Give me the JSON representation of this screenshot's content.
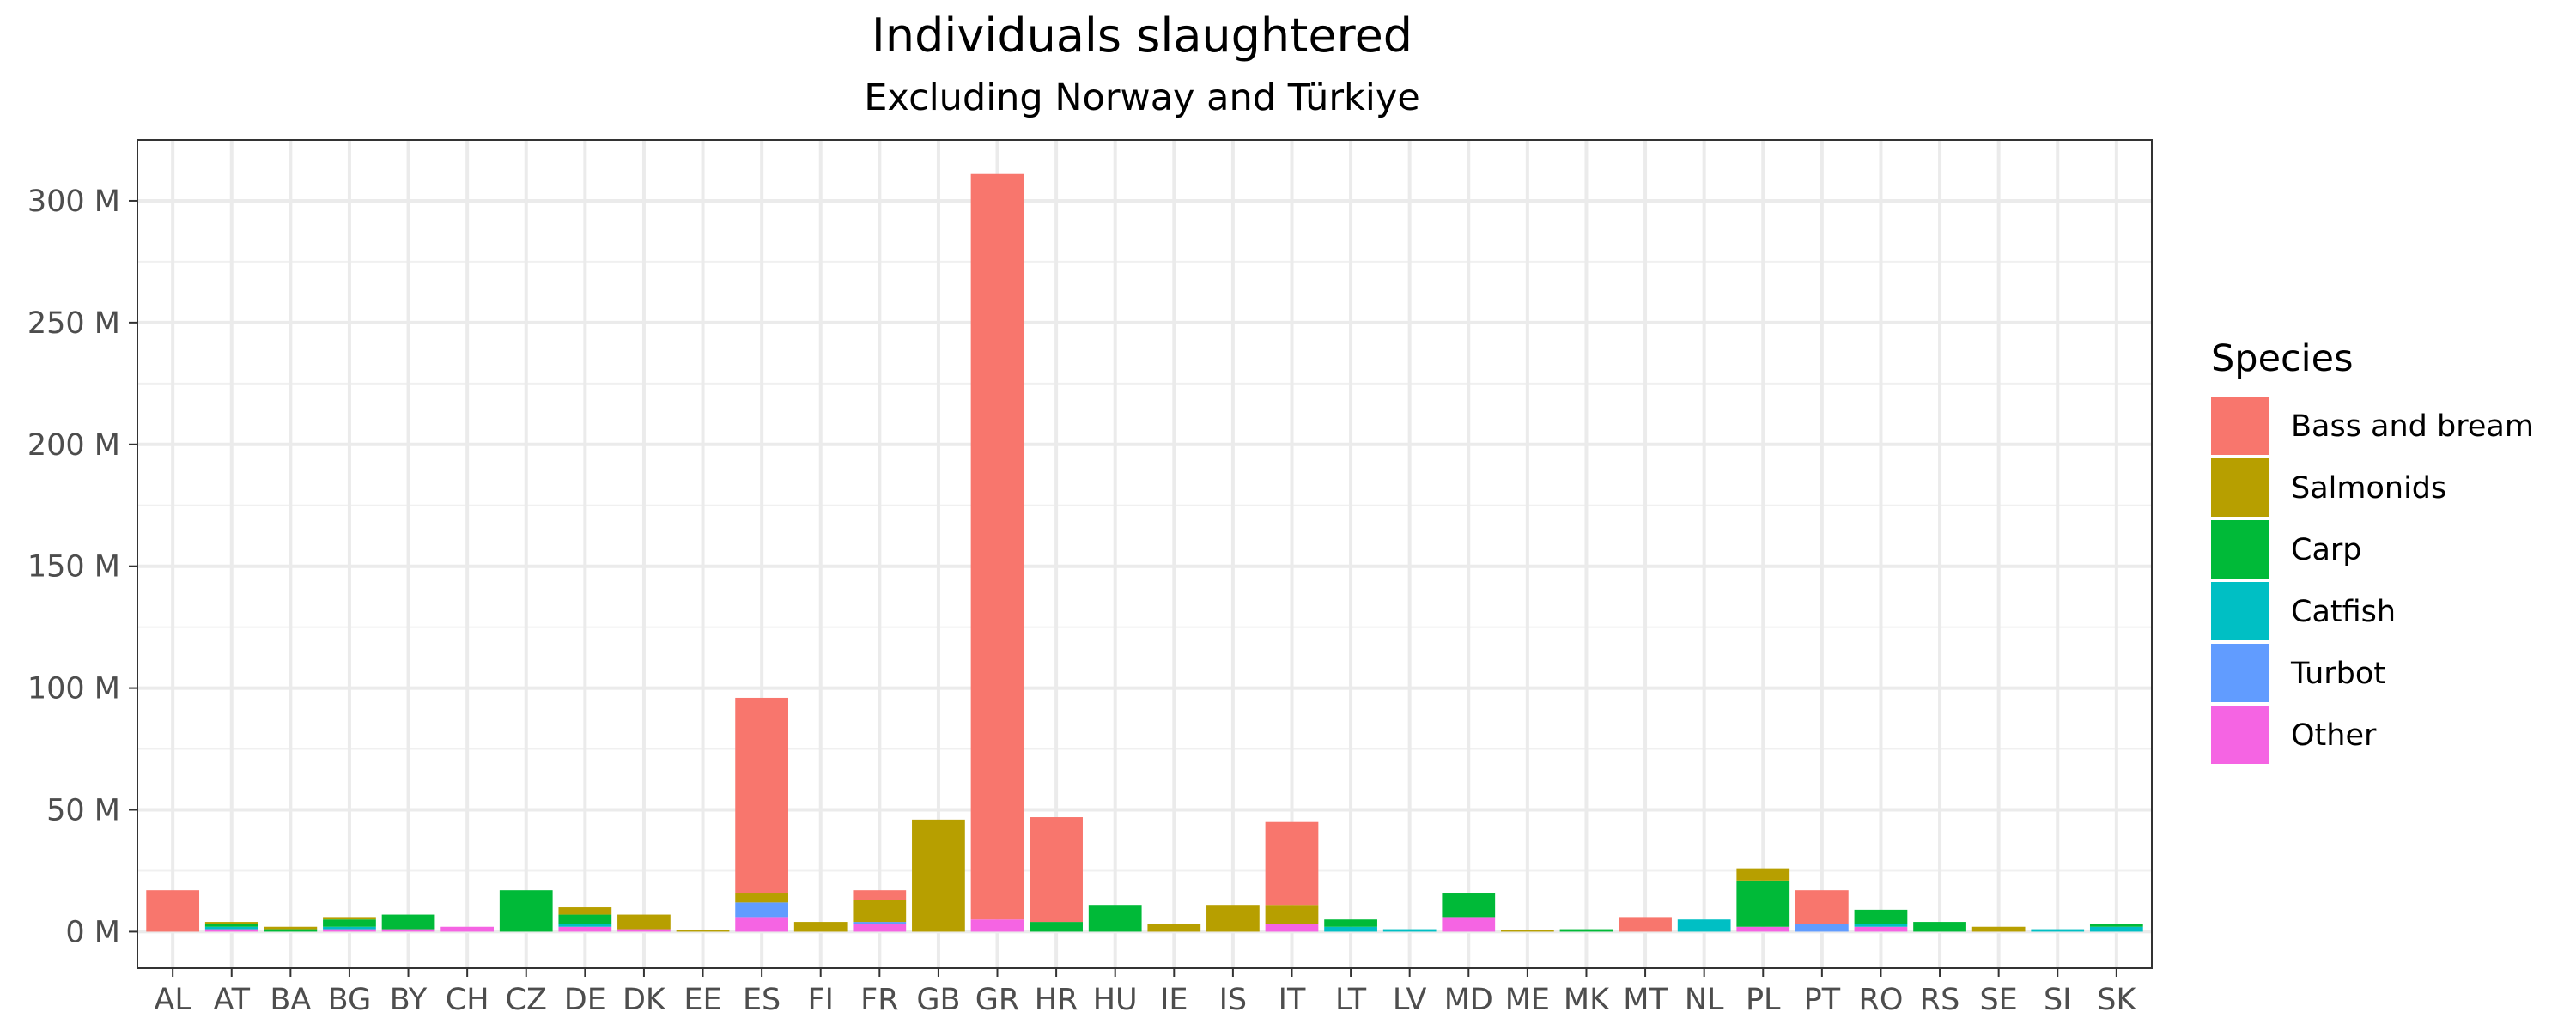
{
  "chart_data": {
    "type": "bar",
    "stacked": true,
    "title": "Individuals slaughtered",
    "subtitle": "Excluding Norway and Türkiye",
    "xlabel": "",
    "ylabel": "",
    "ylim": [
      -15,
      325
    ],
    "yticks": [
      0,
      50,
      100,
      150,
      200,
      250,
      300
    ],
    "ytick_labels": [
      "0 M",
      "50 M",
      "100 M",
      "150 M",
      "200 M",
      "250 M",
      "300 M"
    ],
    "grid": true,
    "legend_title": "Species",
    "legend_position": "right",
    "categories": [
      "AL",
      "AT",
      "BA",
      "BG",
      "BY",
      "CH",
      "CZ",
      "DE",
      "DK",
      "EE",
      "ES",
      "FI",
      "FR",
      "GB",
      "GR",
      "HR",
      "HU",
      "IE",
      "IS",
      "IT",
      "LT",
      "LV",
      "MD",
      "ME",
      "MK",
      "MT",
      "NL",
      "PL",
      "PT",
      "RO",
      "RS",
      "SE",
      "SI",
      "SK"
    ],
    "series": [
      {
        "name": "Other",
        "color": "#F564E3",
        "values": [
          0,
          1,
          0,
          1,
          1,
          2,
          0,
          2,
          1,
          0,
          6,
          0,
          3,
          0,
          5,
          0,
          0,
          0,
          0,
          3,
          0,
          0,
          6,
          0,
          0,
          0,
          0,
          2,
          0,
          2,
          0,
          0,
          0,
          0
        ]
      },
      {
        "name": "Turbot",
        "color": "#619CFF",
        "values": [
          0,
          0,
          0,
          0,
          0,
          0,
          0,
          0,
          0,
          0,
          6,
          0,
          1,
          0,
          0,
          0,
          0,
          0,
          0,
          0,
          0,
          0,
          0,
          0,
          0,
          0,
          0,
          0,
          3,
          0,
          0,
          0,
          0,
          0
        ]
      },
      {
        "name": "Catfish",
        "color": "#00BFC4",
        "values": [
          0,
          1,
          0,
          1,
          0,
          0,
          0,
          1,
          0,
          0,
          0,
          0,
          0,
          0,
          0,
          0,
          0,
          0,
          0,
          0,
          2,
          1,
          0,
          0,
          0,
          0,
          5,
          0,
          0,
          1,
          0,
          0,
          1,
          2
        ]
      },
      {
        "name": "Carp",
        "color": "#00BA38",
        "values": [
          0,
          1,
          1,
          3,
          6,
          0,
          17,
          4,
          0,
          0,
          0,
          0,
          0,
          0,
          0,
          4,
          11,
          0,
          0,
          0,
          3,
          0,
          10,
          0,
          1,
          0,
          0,
          19,
          0,
          6,
          4,
          0,
          0,
          1
        ]
      },
      {
        "name": "Salmonids",
        "color": "#B79F00",
        "values": [
          0,
          1,
          1,
          1,
          0,
          0,
          0,
          3,
          6,
          0.5,
          4,
          4,
          9,
          46,
          0,
          0,
          0,
          3,
          11,
          8,
          0,
          0,
          0,
          0.5,
          0,
          0,
          0,
          5,
          0,
          0,
          0,
          2,
          0,
          0
        ]
      },
      {
        "name": "Bass and bream",
        "color": "#F8766D",
        "values": [
          17,
          0,
          0,
          0,
          0,
          0,
          0,
          0,
          0,
          0,
          80,
          0,
          4,
          0,
          306,
          43,
          0,
          0,
          0,
          34,
          0,
          0,
          0,
          0,
          0,
          6,
          0,
          0,
          14,
          0,
          0,
          0,
          0,
          0
        ]
      }
    ]
  }
}
